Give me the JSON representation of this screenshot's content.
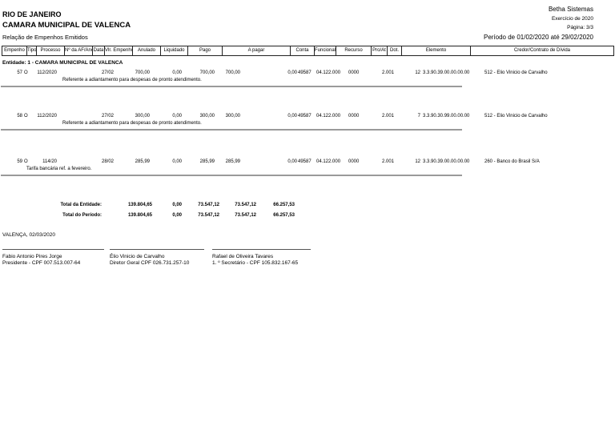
{
  "header": {
    "state": "RIO DE JANEIRO",
    "org": "CAMARA MUNICIPAL DE VALENCA",
    "report_title": "Relação de Empenhos Emitidos",
    "vendor": "Betha Sistemas",
    "exercise": "Exercício de 2020",
    "page": "Página: 3/3",
    "period": "Período de 01/02/2020 até 29/02/2020"
  },
  "table": {
    "columns": [
      "Empenho",
      "Tipo",
      "Processo",
      "Nº da AF/Ano",
      "Data",
      "Vlr. Empenho",
      "Anulado",
      "Liquidado",
      "Pago",
      "A pagar",
      "Conta",
      "Funcional",
      "Recurso",
      "Pro/At",
      "Dot.",
      "Elemento",
      "Credor/Contrato de Dívida"
    ],
    "entity_line": "Entidade: 1 - CAMARA MUNICIPAL DE VALENCA",
    "rows": [
      {
        "empenho": "57",
        "tipo": "O",
        "processo": "112/2020",
        "af_ano": "",
        "data": "27/02",
        "vlr_empenho": "700,00",
        "anulado": "0,00",
        "liquidado": "700,00",
        "pago": "700,00",
        "a_pagar": "0,00",
        "conta": "49587",
        "funcional": "04.122.000",
        "recurso": "0000",
        "pro_at": "2.001",
        "dot": "12",
        "elemento": "3.3.90.39.00.00.00.00",
        "credor": "512 - Elio Vinicio de Carvalho",
        "descricao": "Referente a adiantamento para despesas de pronto atendimento."
      },
      {
        "empenho": "58",
        "tipo": "O",
        "processo": "112/2020",
        "af_ano": "",
        "data": "27/02",
        "vlr_empenho": "300,00",
        "anulado": "0,00",
        "liquidado": "300,00",
        "pago": "300,00",
        "a_pagar": "0,00",
        "conta": "49587",
        "funcional": "04.122.000",
        "recurso": "0000",
        "pro_at": "2.001",
        "dot": "7",
        "elemento": "3.3.90.30.99.00.00.00",
        "credor": "512 - Elio Vinicio de Carvalho",
        "descricao": "Referente a adiantamento para despesas de pronto atendimento."
      },
      {
        "empenho": "59",
        "tipo": "O",
        "processo": "114/20",
        "af_ano": "",
        "data": "28/02",
        "vlr_empenho": "285,99",
        "anulado": "0,00",
        "liquidado": "285,99",
        "pago": "285,99",
        "a_pagar": "0,00",
        "conta": "49587",
        "funcional": "04.122.000",
        "recurso": "0000",
        "pro_at": "2.001",
        "dot": "12",
        "elemento": "3.3.90.39.00.00.00.00",
        "credor": "260 - Banco do Brasil S/A",
        "descricao": "Tarifa bancária ref. a fevereiro."
      }
    ],
    "totals": [
      {
        "label": "Total da Entidade:",
        "vlr_empenho": "139.804,65",
        "anulado": "0,00",
        "liquidado": "73.547,12",
        "pago": "73.547,12",
        "a_pagar": "66.257,53"
      },
      {
        "label": "Total do Período:",
        "vlr_empenho": "139.804,65",
        "anulado": "0,00",
        "liquidado": "73.547,12",
        "pago": "73.547,12",
        "a_pagar": "66.257,53"
      }
    ]
  },
  "footer": {
    "place_date": "VALENÇA,  02/03/2020",
    "signatures": [
      {
        "name": "Fabio Antonio Pires Jorge",
        "role": "Presidente - CPF 007.513.007-64"
      },
      {
        "name": "Élio Vinicio de Carvalho",
        "role": "Diretor Geral  CPF 026.731.257-10"
      },
      {
        "name": "Rafael de Oliveira Tavares",
        "role": "1. º Secretário - CPF 105.832.167-65"
      }
    ]
  }
}
